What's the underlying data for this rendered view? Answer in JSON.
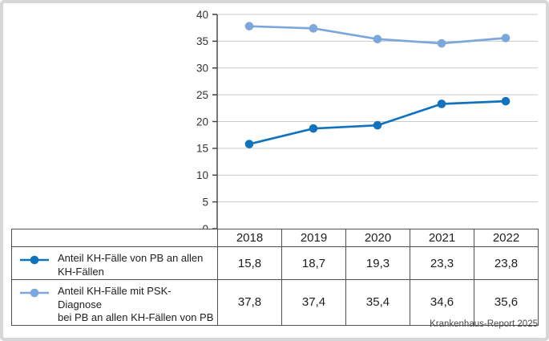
{
  "chart_data": {
    "type": "line",
    "title": "",
    "xlabel": "",
    "ylabel": "",
    "x": [
      "2018",
      "2019",
      "2020",
      "2021",
      "2022"
    ],
    "series": [
      {
        "name": "Anteil KH-Fälle von PB an allen\nKH-Fällen",
        "color": "#1173BD",
        "values": [
          15.8,
          18.7,
          19.3,
          23.3,
          23.8
        ],
        "labels": [
          "15,8",
          "18,7",
          "19,3",
          "23,3",
          "23,8"
        ]
      },
      {
        "name": "Anteil KH-Fälle mit PSK-Diagnose\nbei PB an allen KH-Fällen von PB",
        "color": "#7CA7DB",
        "values": [
          37.8,
          37.4,
          35.4,
          34.6,
          35.6
        ],
        "labels": [
          "37,8",
          "37,4",
          "35,4",
          "34,6",
          "35,6"
        ]
      }
    ],
    "ylim": [
      0,
      40
    ],
    "ytick_step": 5,
    "ytick_labels": [
      "0",
      "5",
      "10",
      "15",
      "20",
      "25",
      "30",
      "35",
      "40"
    ],
    "grid": true,
    "legend_position": "table-left"
  },
  "source": "Krankenhaus-Report 2025",
  "colors": {
    "grid": "#c9cacc",
    "axis": "#3f4042",
    "table_border": "#4f5052",
    "frame": "#d5d7d9"
  }
}
